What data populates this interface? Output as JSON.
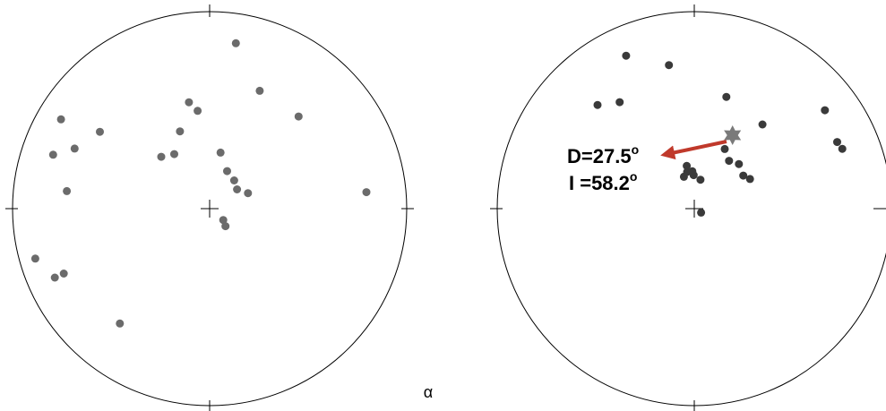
{
  "chart_data": [
    {
      "type": "scatter",
      "projection": "equal-area stereonet (polar: direction angle clockwise from top, radial distance from centre)",
      "coordinates": "x = declination in degrees, y = normalized radial distance (0 = centre, 1 = rim)",
      "grid": false,
      "marks": "center cross and four tick marks at top, right, bottom, left",
      "series": [
        {
          "color": "#6b6b6b",
          "points": [
            {
              "x": 9,
              "y": 0.85
            },
            {
              "x": 23,
              "y": 0.65
            },
            {
              "x": 353,
              "y": 0.5
            },
            {
              "x": 349,
              "y": 0.55
            },
            {
              "x": 339,
              "y": 0.42
            },
            {
              "x": 327,
              "y": 0.33
            },
            {
              "x": 317,
              "y": 0.36
            },
            {
              "x": 305,
              "y": 0.68
            },
            {
              "x": 301,
              "y": 0.88
            },
            {
              "x": 289,
              "y": 0.84
            },
            {
              "x": 294,
              "y": 0.75
            },
            {
              "x": 277,
              "y": 0.73
            },
            {
              "x": 44,
              "y": 0.65
            },
            {
              "x": 84,
              "y": 0.8
            },
            {
              "x": 11,
              "y": 0.29
            },
            {
              "x": 25,
              "y": 0.21
            },
            {
              "x": 68,
              "y": 0.21
            },
            {
              "x": 55,
              "y": 0.17
            },
            {
              "x": 41,
              "y": 0.19
            },
            {
              "x": 130,
              "y": 0.09
            },
            {
              "x": 138,
              "y": 0.12
            },
            {
              "x": 246,
              "y": 0.86
            },
            {
              "x": 254,
              "y": 0.92
            },
            {
              "x": 246,
              "y": 0.81
            },
            {
              "x": 218,
              "y": 0.74
            }
          ]
        }
      ]
    },
    {
      "type": "scatter",
      "projection": "equal-area stereonet (polar: direction angle clockwise from top, radial distance from centre)",
      "coordinates": "x = declination in degrees, y = normalized radial distance (0 = centre, 1 = rim)",
      "grid": false,
      "marks": "center cross and four tick marks at top, right, bottom, left",
      "series": [
        {
          "color": "#3a3a3a",
          "points": [
            {
              "x": 336,
              "y": 0.85
            },
            {
              "x": 350,
              "y": 0.74
            },
            {
              "x": 317,
              "y": 0.72
            },
            {
              "x": 325,
              "y": 0.66
            },
            {
              "x": 16,
              "y": 0.59
            },
            {
              "x": 39,
              "y": 0.55
            },
            {
              "x": 53,
              "y": 0.83
            },
            {
              "x": 65,
              "y": 0.8
            },
            {
              "x": 68,
              "y": 0.81
            },
            {
              "x": 27,
              "y": 0.34
            },
            {
              "x": 36,
              "y": 0.3
            },
            {
              "x": 45,
              "y": 0.32
            },
            {
              "x": 56,
              "y": 0.3
            },
            {
              "x": 62,
              "y": 0.32
            },
            {
              "x": 12,
              "y": 0.15
            },
            {
              "x": 342,
              "y": 0.17
            },
            {
              "x": 349,
              "y": 0.19
            },
            {
              "x": 357,
              "y": 0.19
            },
            {
              "x": 359,
              "y": 0.17
            },
            {
              "x": 350,
              "y": 0.22
            },
            {
              "x": 120,
              "y": 0.04
            }
          ]
        },
        {
          "name": "",
          "marker": "star",
          "color": "#7a7a7a",
          "points": [
            {
              "x": 27.5,
              "y": 0.42
            }
          ]
        }
      ],
      "annotations": {
        "declination": "D=27.5",
        "inclination": "I =58.2",
        "degree_symbol": "o",
        "arrow_color": "#c0392b"
      }
    }
  ],
  "caption": "α"
}
